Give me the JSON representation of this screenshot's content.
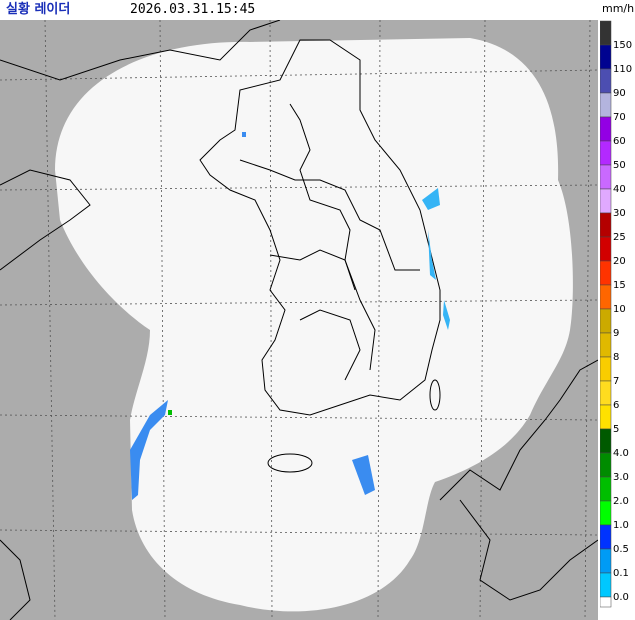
{
  "header": {
    "title": "실황 레이더",
    "timestamp": "2026.03.31.15:45"
  },
  "legend": {
    "unit": "mm/h",
    "levels": [
      {
        "label": "150",
        "color": "#333333"
      },
      {
        "label": "110",
        "color": "#000390"
      },
      {
        "label": "90",
        "color": "#4c4eb1"
      },
      {
        "label": "70",
        "color": "#b3b4de"
      },
      {
        "label": "60",
        "color": "#9300e4"
      },
      {
        "label": "50",
        "color": "#b329ff"
      },
      {
        "label": "40",
        "color": "#c969ff"
      },
      {
        "label": "30",
        "color": "#e0a9ff"
      },
      {
        "label": "25",
        "color": "#b40000"
      },
      {
        "label": "20",
        "color": "#d20000"
      },
      {
        "label": "15",
        "color": "#ff3300"
      },
      {
        "label": "10",
        "color": "#ff6600"
      },
      {
        "label": "9",
        "color": "#ccaa00"
      },
      {
        "label": "8",
        "color": "#e0b900"
      },
      {
        "label": "7",
        "color": "#f9cd00"
      },
      {
        "label": "6",
        "color": "#ffdc1f"
      },
      {
        "label": "5",
        "color": "#ffe100"
      },
      {
        "label": "4.0",
        "color": "#005a00"
      },
      {
        "label": "3.0",
        "color": "#008c00"
      },
      {
        "label": "2.0",
        "color": "#00be00"
      },
      {
        "label": "1.0",
        "color": "#00ff00"
      },
      {
        "label": "0.5",
        "color": "#0033ff"
      },
      {
        "label": "0.1",
        "color": "#009bf5"
      },
      {
        "label": "0.0",
        "color": "#00c8ff"
      }
    ]
  }
}
